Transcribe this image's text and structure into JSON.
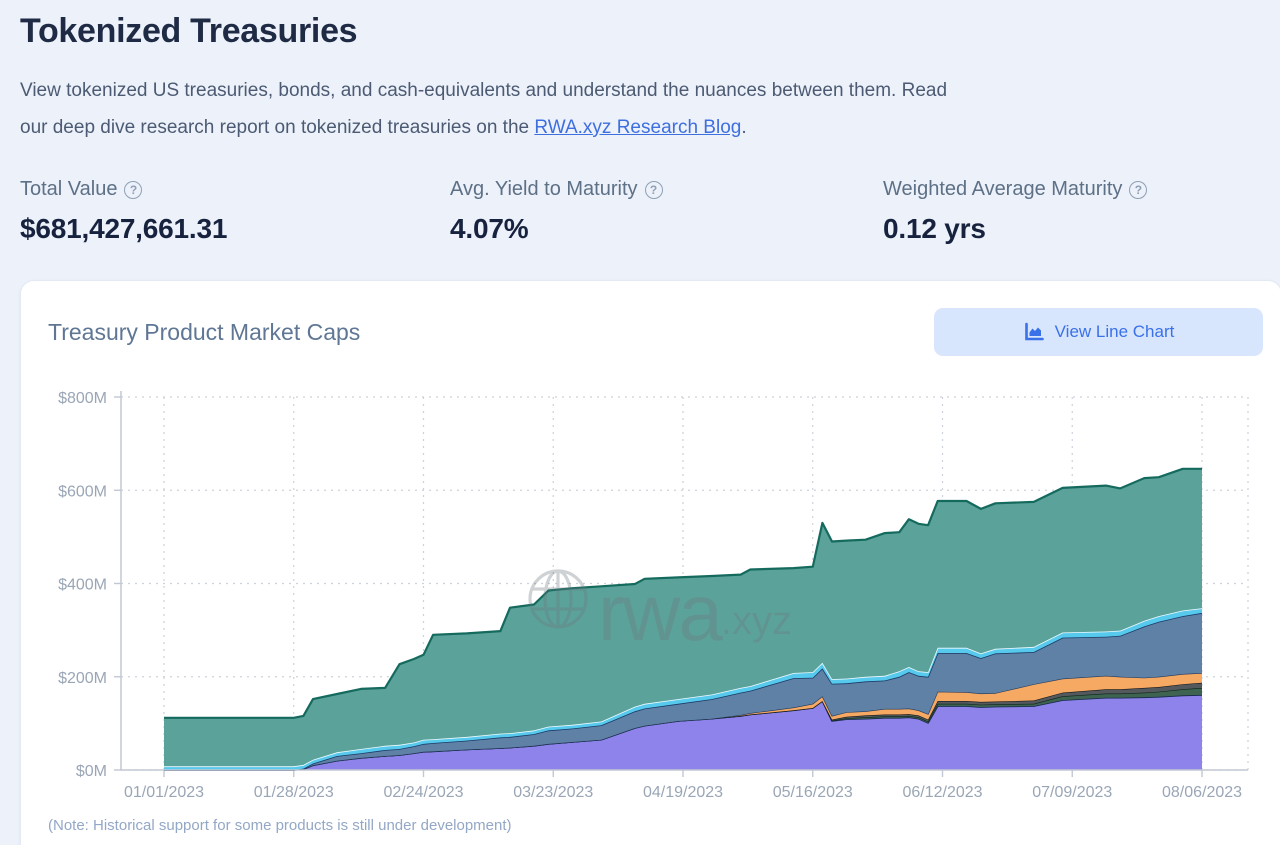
{
  "page": {
    "title": "Tokenized Treasuries",
    "desc_line1": "View tokenized US treasuries, bonds, and cash-equivalents and understand the nuances between them. Read",
    "desc_line2_prefix": "our deep dive research report on tokenized treasuries on the ",
    "link_text": "RWA.xyz Research Blog",
    "desc_period": ".",
    "help_glyph": "?"
  },
  "stats": [
    {
      "label": "Total Value",
      "value": "$681,427,661.31"
    },
    {
      "label": "Avg. Yield to Maturity",
      "value": "4.07%"
    },
    {
      "label": "Weighted Average Maturity",
      "value": "0.12 yrs"
    }
  ],
  "card": {
    "title": "Treasury Product Market Caps",
    "button_label": "View Line Chart",
    "note": "(Note: Historical support for some products is still under development)",
    "watermark_text": "rwa",
    "watermark_suffix": ".xyz",
    "accent_color": "#3a71e9",
    "button_bg": "#d8e6fd"
  },
  "chart_data": {
    "type": "area",
    "stacked": true,
    "title": "Treasury Product Market Caps",
    "xlabel": "",
    "ylabel": "",
    "unit": "USD millions",
    "ylim": [
      0,
      800
    ],
    "grid": "dashed",
    "legend": "none",
    "y_ticks": [
      {
        "v": 0,
        "label": "$0M"
      },
      {
        "v": 200,
        "label": "$200M"
      },
      {
        "v": 400,
        "label": "$400M"
      },
      {
        "v": 600,
        "label": "$600M"
      },
      {
        "v": 800,
        "label": "$800M"
      }
    ],
    "x_ticks": [
      {
        "d": 0,
        "label": "01/01/2023"
      },
      {
        "d": 27,
        "label": "01/28/2023"
      },
      {
        "d": 54,
        "label": "02/24/2023"
      },
      {
        "d": 81,
        "label": "03/23/2023"
      },
      {
        "d": 108,
        "label": "04/19/2023"
      },
      {
        "d": 135,
        "label": "05/16/2023"
      },
      {
        "d": 162,
        "label": "06/12/2023"
      },
      {
        "d": 189,
        "label": "07/09/2023"
      },
      {
        "d": 216,
        "label": "08/06/2023"
      }
    ],
    "days": [
      0,
      27,
      29,
      31,
      36,
      41,
      46,
      49,
      52,
      54,
      56,
      63,
      70,
      72,
      77,
      80,
      85,
      91,
      98,
      100,
      107,
      114,
      120,
      122,
      131,
      135,
      137,
      139,
      142,
      146,
      150,
      153,
      155,
      157,
      159,
      161,
      167,
      170,
      173,
      181,
      187,
      196,
      199,
      204,
      207,
      212,
      216
    ],
    "series": [
      {
        "name": "purple",
        "color": "#8e83ea",
        "stroke": "#17284e",
        "sw": 1.6,
        "values": [
          0,
          0,
          2,
          10,
          20,
          26,
          30,
          32,
          36,
          39,
          40,
          44,
          47,
          48,
          52,
          56,
          60,
          65,
          90,
          95,
          105,
          110,
          116,
          119,
          128,
          133,
          148,
          105,
          109,
          110,
          112,
          112,
          113,
          110,
          101,
          137,
          137,
          135,
          136,
          137,
          150,
          155,
          155,
          156,
          157,
          160,
          161
        ]
      },
      {
        "name": "dark-green",
        "color": "#3e6350",
        "stroke": "#0c2418",
        "sw": 1.2,
        "values": [
          0,
          0,
          0,
          0,
          0,
          0,
          0,
          0,
          0,
          0,
          0,
          0,
          0,
          0,
          0,
          0,
          0,
          0,
          0,
          0,
          0,
          0,
          0,
          0,
          0,
          0,
          0,
          1,
          2,
          3,
          3,
          3,
          3,
          3,
          3,
          5,
          5,
          5,
          5,
          5,
          8,
          9,
          9,
          10,
          11,
          13,
          15
        ]
      },
      {
        "name": "charcoal",
        "color": "#53595d",
        "stroke": "#15181b",
        "sw": 1.2,
        "values": [
          0,
          0,
          0,
          0,
          0,
          0,
          0,
          0,
          0,
          0,
          0,
          0,
          0,
          0,
          0,
          0,
          0,
          0,
          0,
          0,
          0,
          0,
          0,
          0,
          0,
          0,
          0,
          2,
          3,
          4,
          4,
          4,
          4,
          4,
          4,
          6,
          6,
          6,
          6,
          7,
          8,
          9,
          9,
          10,
          10,
          11,
          11
        ]
      },
      {
        "name": "orange",
        "color": "#f6a963",
        "stroke": "#20375c",
        "sw": 1.2,
        "values": [
          0,
          0,
          0,
          0,
          0,
          0,
          0,
          0,
          0,
          0,
          0,
          0,
          0,
          0,
          0,
          0,
          0,
          0,
          0,
          0,
          0,
          0,
          2,
          3,
          6,
          9,
          10,
          8,
          10,
          9,
          12,
          12,
          12,
          11,
          12,
          20,
          19,
          18,
          18,
          35,
          30,
          29,
          27,
          22,
          22,
          22,
          21
        ]
      },
      {
        "name": "steel-blue",
        "color": "#5e81a5",
        "stroke": "#1b3a66",
        "sw": 1.6,
        "values": [
          0,
          0,
          1,
          4,
          10,
          10,
          13,
          13,
          15,
          17,
          18,
          19,
          23,
          23,
          25,
          29,
          29,
          31,
          36,
          37,
          37,
          42,
          48,
          48,
          63,
          56,
          60,
          69,
          62,
          64,
          61,
          69,
          78,
          74,
          80,
          83,
          84,
          76,
          85,
          69,
          88,
          84,
          88,
          110,
          118,
          124,
          129
        ]
      },
      {
        "name": "cyan",
        "color": "#57c9ec",
        "stroke": "#eefbff",
        "sw": 1.6,
        "values": [
          8,
          8,
          8,
          8,
          8,
          9,
          9,
          9,
          8,
          9,
          8,
          8,
          8,
          8,
          8,
          8,
          8,
          8,
          10,
          10,
          10,
          10,
          10,
          10,
          11,
          12,
          12,
          10,
          10,
          10,
          10,
          12,
          11,
          10,
          10,
          11,
          11,
          10,
          10,
          11,
          11,
          11,
          11,
          12,
          12,
          12,
          10
        ]
      },
      {
        "name": "teal",
        "color": "#5ba39a",
        "stroke": "#156a5e",
        "sw": 2.2,
        "values": [
          104,
          104,
          105,
          130,
          125,
          129,
          124,
          173,
          179,
          182,
          224,
          222,
          220,
          269,
          270,
          292,
          293,
          290,
          263,
          268,
          261,
          254,
          243,
          250,
          225,
          226,
          300,
          295,
          296,
          294,
          306,
          298,
          317,
          316,
          315,
          315,
          315,
          310,
          312,
          311,
          310,
          313,
          305,
          306,
          298,
          304,
          299
        ]
      }
    ]
  }
}
